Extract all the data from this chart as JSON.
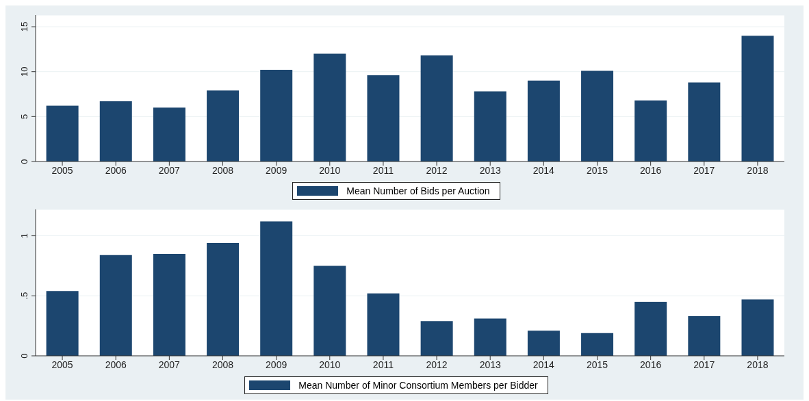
{
  "chart_data": [
    {
      "type": "bar",
      "categories": [
        "2005",
        "2006",
        "2007",
        "2008",
        "2009",
        "2010",
        "2011",
        "2012",
        "2013",
        "2014",
        "2015",
        "2016",
        "2017",
        "2018"
      ],
      "series": [
        {
          "name": "Mean Number of Bids per Auction",
          "color": "#1c466f",
          "values": [
            6.2,
            6.7,
            6.0,
            7.9,
            10.2,
            12.0,
            9.6,
            11.8,
            7.8,
            9.0,
            10.1,
            6.8,
            8.8,
            14.0
          ]
        }
      ],
      "ylim": [
        0,
        16.3
      ],
      "yticks": [
        0,
        5,
        10,
        15
      ],
      "grid": "y",
      "legend": "bottom"
    },
    {
      "type": "bar",
      "categories": [
        "2005",
        "2006",
        "2007",
        "2008",
        "2009",
        "2010",
        "2011",
        "2012",
        "2013",
        "2014",
        "2015",
        "2016",
        "2017",
        "2018"
      ],
      "series": [
        {
          "name": "Mean Number of Minor Consortium Members per Bidder",
          "color": "#1c466f",
          "values": [
            0.54,
            0.84,
            0.85,
            0.94,
            1.12,
            0.75,
            0.52,
            0.29,
            0.31,
            0.21,
            0.19,
            0.45,
            0.33,
            0.47
          ]
        }
      ],
      "ylim": [
        0,
        1.22
      ],
      "yticks": [
        0,
        {
          "value": 0.5,
          "label": ".5"
        },
        1
      ],
      "grid": "y",
      "legend": "bottom"
    }
  ]
}
